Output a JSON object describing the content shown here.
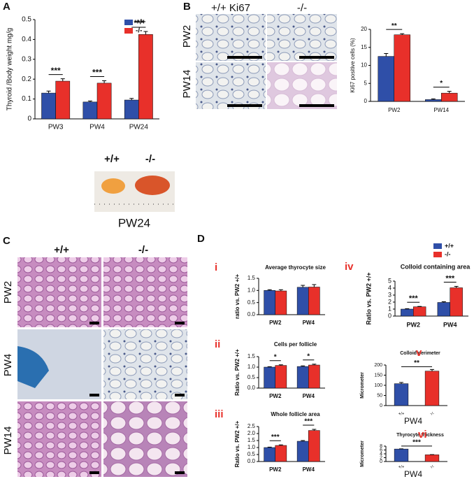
{
  "panel_labels": [
    "A",
    "B",
    "C",
    "D"
  ],
  "photo_A": {
    "labels": [
      "+/+",
      "-/-"
    ],
    "caption": "PW24"
  },
  "images_B": {
    "columns": [
      "+/+ Ki67",
      "-/-"
    ],
    "rows": [
      "PW2",
      "PW14"
    ]
  },
  "images_C": {
    "columns": [
      "+/+",
      "-/-"
    ],
    "rows": [
      "PW2",
      "PW4",
      "PW14"
    ]
  },
  "chart_data": [
    {
      "type": "bar",
      "ylabel": "Thyroid /Body weight mg/g",
      "categories": [
        "PW3",
        "PW4",
        "PW24"
      ],
      "series": [
        {
          "name": "+/+",
          "color": "#2f4fa8",
          "values": [
            0.13,
            0.085,
            0.095
          ],
          "errors": [
            0.01,
            0.005,
            0.008
          ]
        },
        {
          "name": "-/-",
          "color": "#e8302a",
          "values": [
            0.19,
            0.18,
            0.425
          ],
          "errors": [
            0.012,
            0.012,
            0.015
          ]
        }
      ],
      "significance": [
        "***",
        "***",
        "***"
      ],
      "ylim": [
        0,
        0.5
      ],
      "yticks": [
        0,
        0.1,
        0.2,
        0.3,
        0.4,
        0.5
      ],
      "legend": "upper right"
    },
    {
      "type": "bar",
      "ylabel": "Ki67 positive cells (%)",
      "categories": [
        "PW2",
        "PW14"
      ],
      "series": [
        {
          "name": "+/+",
          "color": "#2f4fa8",
          "values": [
            12.5,
            0.5
          ],
          "errors": [
            0.8,
            0.2
          ]
        },
        {
          "name": "-/-",
          "color": "#e8302a",
          "values": [
            18.5,
            2.3
          ],
          "errors": [
            0.3,
            0.5
          ]
        }
      ],
      "significance": [
        "**",
        "*"
      ],
      "ylim": [
        0,
        20
      ],
      "yticks": [
        0,
        5,
        10,
        15,
        20
      ]
    },
    {
      "type": "bar",
      "numeral": "i",
      "title": "Average thyrocyte size",
      "ylabel": "ratio vs. PW2 +/+",
      "categories": [
        "PW2",
        "PW4"
      ],
      "series": [
        {
          "name": "+/+",
          "color": "#2f4fa8",
          "values": [
            1.0,
            1.13
          ],
          "errors": [
            0.03,
            0.08
          ]
        },
        {
          "name": "-/-",
          "color": "#e8302a",
          "values": [
            0.98,
            1.14
          ],
          "errors": [
            0.05,
            0.1
          ]
        }
      ],
      "ylim": [
        0,
        1.5
      ],
      "yticks": [
        {
          "value": 0,
          "label": "0.0"
        },
        {
          "value": 0.5,
          "label": "0.5"
        },
        {
          "value": 1,
          "label": "1.0"
        },
        {
          "value": 1.5,
          "label": "1.5"
        }
      ]
    },
    {
      "type": "bar",
      "numeral": "ii",
      "title": "Cells per follicle",
      "ylabel": "Ratio vs. PW2 +/+",
      "categories": [
        "PW2",
        "PW4"
      ],
      "series": [
        {
          "name": "+/+",
          "color": "#2f4fa8",
          "values": [
            1.0,
            1.03
          ],
          "errors": [
            0.02,
            0.03
          ]
        },
        {
          "name": "-/-",
          "color": "#e8302a",
          "values": [
            1.08,
            1.1
          ],
          "errors": [
            0.03,
            0.04
          ]
        }
      ],
      "significance": [
        "*",
        "*"
      ],
      "ylim": [
        0,
        1.5
      ],
      "yticks": [
        {
          "value": 0,
          "label": "0.0"
        },
        {
          "value": 0.5,
          "label": "0.5"
        },
        {
          "value": 1,
          "label": "1.0"
        },
        {
          "value": 1.5,
          "label": "1.5"
        }
      ]
    },
    {
      "type": "bar",
      "numeral": "iii",
      "title": "Whole follicle area",
      "ylabel": "Ratio vs. PW2 +/+",
      "categories": [
        "PW2",
        "PW4"
      ],
      "series": [
        {
          "name": "+/+",
          "color": "#2f4fa8",
          "values": [
            1.0,
            1.45
          ],
          "errors": [
            0.03,
            0.05
          ]
        },
        {
          "name": "-/-",
          "color": "#e8302a",
          "values": [
            1.15,
            2.22
          ],
          "errors": [
            0.04,
            0.08
          ]
        }
      ],
      "significance": [
        "***",
        "***"
      ],
      "ylim": [
        0,
        2.5
      ],
      "yticks": [
        {
          "value": 0,
          "label": "0.0"
        },
        {
          "value": 0.5,
          "label": "0.5"
        },
        {
          "value": 1,
          "label": "1.0"
        },
        {
          "value": 1.5,
          "label": "1.5"
        },
        {
          "value": 2,
          "label": "2.0"
        },
        {
          "value": 2.5,
          "label": "2.5"
        }
      ]
    },
    {
      "type": "bar",
      "numeral": "iv",
      "title": "Colloid containing area",
      "ylabel": "Ratio vs. PW2 +/+",
      "categories": [
        "PW2",
        "PW4"
      ],
      "series": [
        {
          "name": "+/+",
          "color": "#2f4fa8",
          "values": [
            1.0,
            1.95
          ],
          "errors": [
            0.05,
            0.1
          ]
        },
        {
          "name": "-/-",
          "color": "#e8302a",
          "values": [
            1.33,
            4.05
          ],
          "errors": [
            0.05,
            0.2
          ]
        }
      ],
      "significance": [
        "***",
        "***"
      ],
      "ylim": [
        0,
        5
      ],
      "yticks": [
        0,
        1,
        2,
        3,
        4,
        5
      ],
      "legend": "upper right"
    },
    {
      "type": "bar",
      "numeral": "v",
      "title": "Colloid perimeter",
      "ylabel": "Micrometer",
      "xlabel": "PW4",
      "categories": [
        "+/+",
        "-/-"
      ],
      "values": [
        108,
        170
      ],
      "errors": [
        6,
        8
      ],
      "colors": [
        "#2f4fa8",
        "#e8302a"
      ],
      "significance": "**",
      "ylim": [
        0,
        200
      ],
      "yticks": [
        0,
        50,
        100,
        150,
        200
      ]
    },
    {
      "type": "bar",
      "numeral": "vi",
      "title": "Thyrocyte thickness",
      "ylabel": "Micrometer",
      "xlabel": "PW4",
      "categories": [
        "+/+",
        "-/-"
      ],
      "values": [
        6.5,
        3.5
      ],
      "errors": [
        0.1,
        0.1
      ],
      "colors": [
        "#2f4fa8",
        "#e8302a"
      ],
      "significance": "***",
      "ylim": [
        0,
        8
      ],
      "yticks": [
        0,
        2,
        4,
        6,
        8
      ]
    }
  ]
}
